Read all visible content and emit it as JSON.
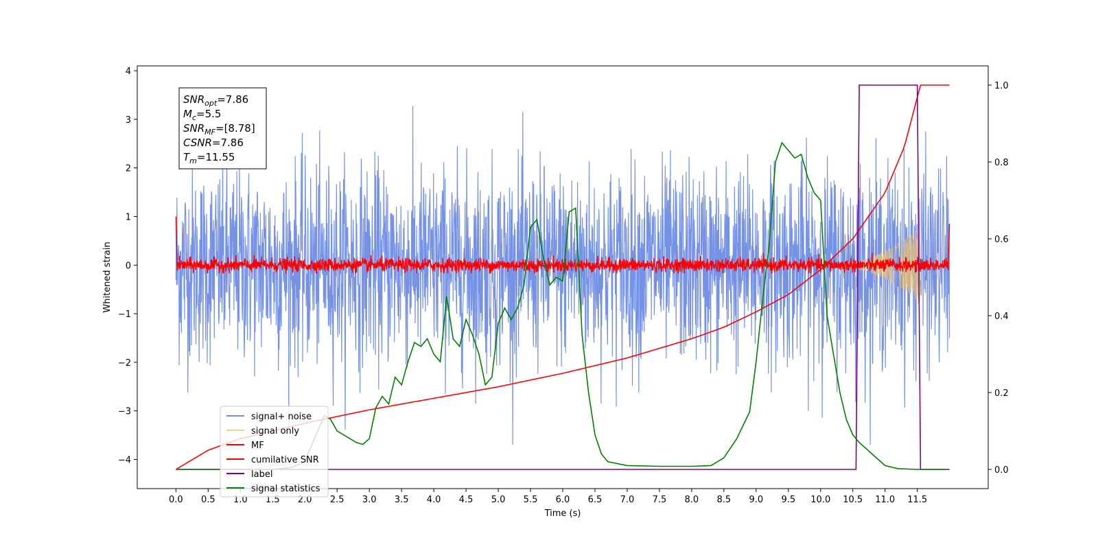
{
  "chart_data": {
    "type": "line",
    "xlabel": "Time (s)",
    "ylabel_left": "Whitened strain",
    "ylabel_right": "",
    "xlim": [
      -0.6,
      12.6
    ],
    "ylim_left": [
      -4.6,
      4.1
    ],
    "ylim_right": [
      -0.05,
      1.05
    ],
    "x_ticks": [
      "0.0",
      "0.5",
      "1.0",
      "1.5",
      "2.0",
      "2.5",
      "3.0",
      "3.5",
      "4.0",
      "4.5",
      "5.0",
      "5.5",
      "6.0",
      "6.5",
      "7.0",
      "7.5",
      "8.0",
      "8.5",
      "9.0",
      "9.5",
      "10.0",
      "10.5",
      "11.0",
      "11.5"
    ],
    "y_ticks_left": [
      "4",
      "3",
      "2",
      "1",
      "0",
      "−1",
      "−2",
      "−3",
      "−4"
    ],
    "y_ticks_right": [
      "1.0",
      "0.8",
      "0.6",
      "0.4",
      "0.2",
      "0.0"
    ],
    "legend_position": "lower-left",
    "info_box": {
      "snr_opt": "=7.86",
      "mc": "=5.5",
      "snr_mf": "=[8.78]",
      "csnr": "=7.86",
      "tm": "=11.55"
    },
    "series": [
      {
        "name": "signal+ noise",
        "color": "#6f8ce6",
        "axis": "left",
        "style": "noise",
        "x_range": [
          0.0,
          12.0
        ],
        "amplitude": 1.0,
        "note_range": [
          -3.7,
          3.7
        ]
      },
      {
        "name": "signal only",
        "color": "#f2c46d",
        "axis": "left",
        "style": "chirp",
        "x_range": [
          10.0,
          11.55
        ],
        "max_amplitude": 0.8
      },
      {
        "name": "MF",
        "color": "#ff0000",
        "axis": "left",
        "style": "noise-small",
        "x_range": [
          0.0,
          12.0
        ]
      },
      {
        "name": "cumilative SNR",
        "color": "#ff0000",
        "axis": "right",
        "style": "line",
        "x": [
          0.0,
          0.1,
          0.5,
          1.0,
          2.0,
          3.0,
          4.0,
          5.0,
          6.0,
          7.0,
          8.0,
          8.5,
          9.0,
          9.5,
          10.0,
          10.5,
          11.0,
          11.3,
          11.55,
          12.0
        ],
        "y": [
          0.0,
          0.01,
          0.05,
          0.08,
          0.12,
          0.155,
          0.185,
          0.215,
          0.25,
          0.29,
          0.34,
          0.37,
          0.41,
          0.455,
          0.52,
          0.6,
          0.72,
          0.84,
          1.0,
          1.0
        ]
      },
      {
        "name": "label",
        "color": "#800080",
        "axis": "right",
        "style": "line",
        "x": [
          0.0,
          10.55,
          10.6,
          11.5,
          11.55,
          12.0
        ],
        "y": [
          0.0,
          0.0,
          1.0,
          1.0,
          0.0,
          0.0
        ]
      },
      {
        "name": "signal statistics",
        "color": "#008000",
        "axis": "right",
        "style": "line",
        "x": [
          0.0,
          1.5,
          1.8,
          2.0,
          2.1,
          2.3,
          2.4,
          2.5,
          2.6,
          2.8,
          2.9,
          3.0,
          3.1,
          3.2,
          3.3,
          3.4,
          3.5,
          3.6,
          3.7,
          3.8,
          3.9,
          4.0,
          4.1,
          4.2,
          4.3,
          4.4,
          4.5,
          4.6,
          4.7,
          4.8,
          4.9,
          5.0,
          5.1,
          5.2,
          5.3,
          5.4,
          5.5,
          5.6,
          5.7,
          5.8,
          5.9,
          6.0,
          6.1,
          6.2,
          6.3,
          6.4,
          6.5,
          6.6,
          6.7,
          7.0,
          7.5,
          8.0,
          8.3,
          8.5,
          8.7,
          8.9,
          9.0,
          9.1,
          9.2,
          9.3,
          9.4,
          9.5,
          9.6,
          9.7,
          9.8,
          9.9,
          10.0,
          10.1,
          10.2,
          10.3,
          10.4,
          10.5,
          10.6,
          10.7,
          10.8,
          10.9,
          11.0,
          11.2,
          11.5,
          11.95
        ],
        "y": [
          0.0,
          0.0,
          0.005,
          0.02,
          0.06,
          0.14,
          0.13,
          0.1,
          0.09,
          0.07,
          0.065,
          0.08,
          0.16,
          0.19,
          0.17,
          0.24,
          0.22,
          0.28,
          0.33,
          0.32,
          0.34,
          0.3,
          0.28,
          0.45,
          0.34,
          0.32,
          0.39,
          0.35,
          0.3,
          0.22,
          0.24,
          0.38,
          0.42,
          0.39,
          0.42,
          0.48,
          0.63,
          0.65,
          0.55,
          0.48,
          0.5,
          0.49,
          0.67,
          0.68,
          0.35,
          0.2,
          0.09,
          0.04,
          0.02,
          0.01,
          0.008,
          0.008,
          0.01,
          0.03,
          0.08,
          0.15,
          0.28,
          0.44,
          0.58,
          0.8,
          0.85,
          0.83,
          0.81,
          0.82,
          0.76,
          0.72,
          0.7,
          0.4,
          0.3,
          0.2,
          0.13,
          0.09,
          0.07,
          0.055,
          0.04,
          0.025,
          0.01,
          0.002,
          0.0,
          0.0
        ]
      }
    ]
  }
}
